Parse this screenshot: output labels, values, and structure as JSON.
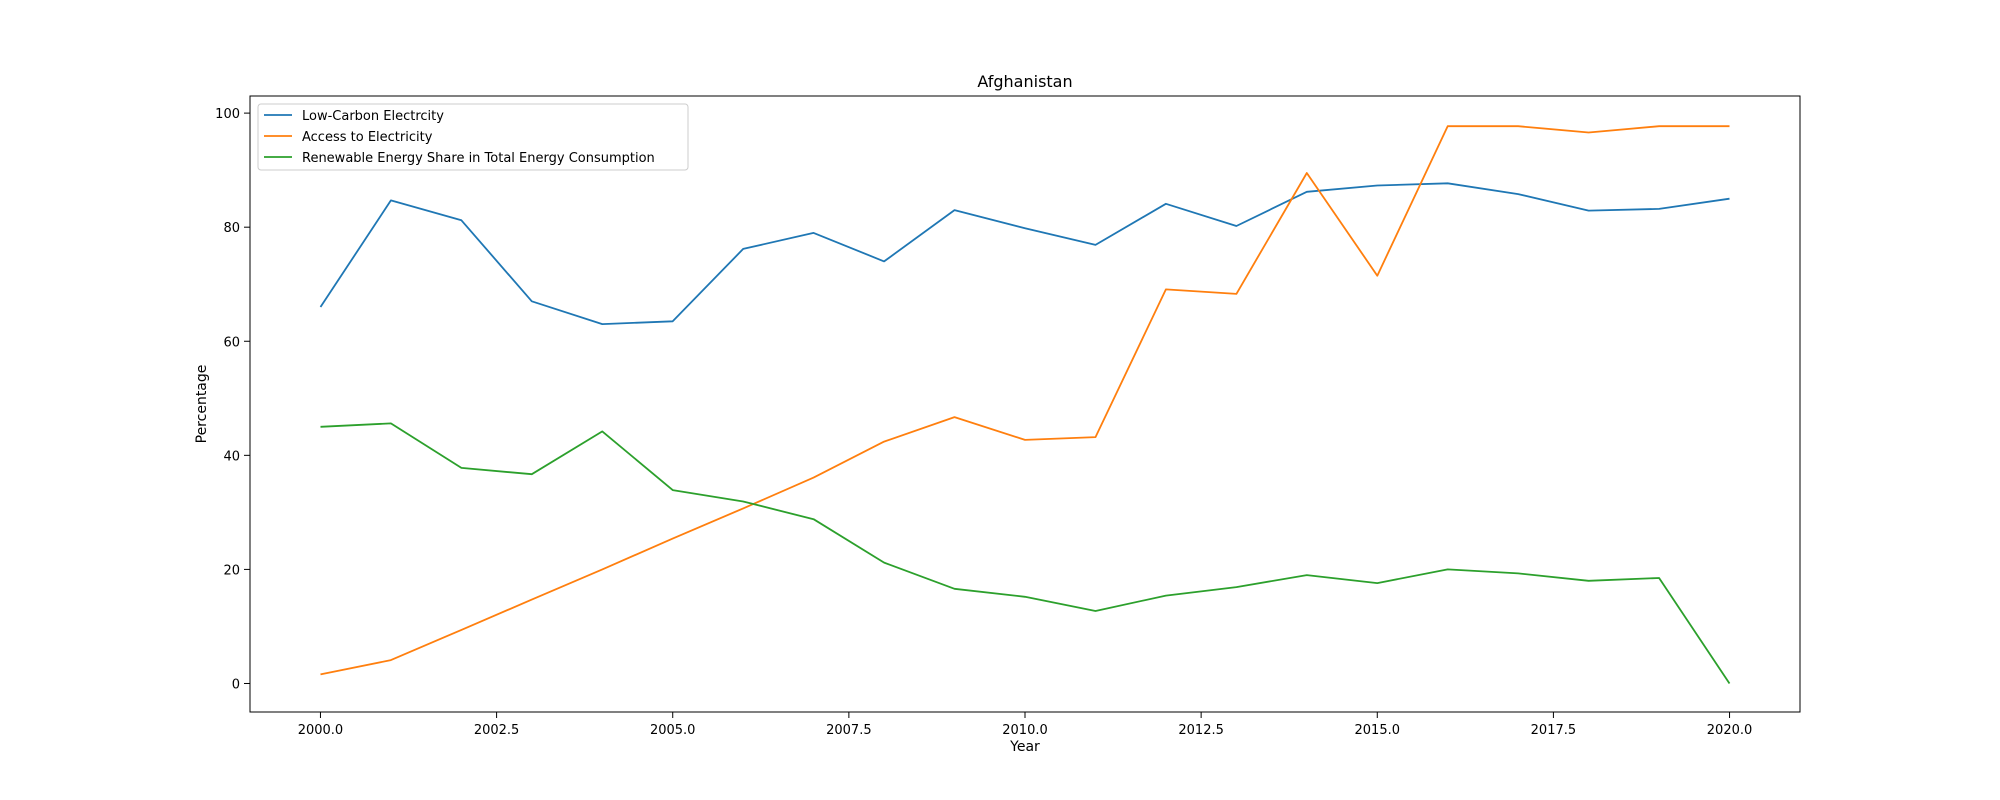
{
  "chart_data": {
    "type": "line",
    "title": "Afghanistan",
    "xlabel": "Year",
    "ylabel": "Percentage",
    "xlim": [
      1999,
      2021
    ],
    "ylim": [
      -5,
      103
    ],
    "xticks": [
      2000.0,
      2002.5,
      2005.0,
      2007.5,
      2010.0,
      2012.5,
      2015.0,
      2017.5,
      2020.0
    ],
    "xtick_labels": [
      "2000.0",
      "2002.5",
      "2005.0",
      "2007.5",
      "2010.0",
      "2012.5",
      "2015.0",
      "2017.5",
      "2020.0"
    ],
    "yticks": [
      0,
      20,
      40,
      60,
      80,
      100
    ],
    "ytick_labels": [
      "0",
      "20",
      "40",
      "60",
      "80",
      "100"
    ],
    "grid": false,
    "legend_position": "top-left",
    "x": [
      2000,
      2001,
      2002,
      2003,
      2004,
      2005,
      2006,
      2007,
      2008,
      2009,
      2010,
      2011,
      2012,
      2013,
      2014,
      2015,
      2016,
      2017,
      2018,
      2019,
      2020
    ],
    "series": [
      {
        "name": "Low-Carbon Electrcity",
        "color": "#1f77b4",
        "values": [
          66.0,
          84.7,
          81.2,
          67.0,
          63.0,
          63.5,
          76.2,
          79.0,
          74.0,
          83.0,
          79.8,
          76.9,
          84.1,
          80.2,
          86.2,
          87.3,
          87.7,
          85.8,
          82.9,
          83.2,
          85.0
        ]
      },
      {
        "name": "Access to Electricity",
        "color": "#ff7f0e",
        "values": [
          1.6,
          4.1,
          9.4,
          14.7,
          20.0,
          25.4,
          30.7,
          36.1,
          42.4,
          46.7,
          42.7,
          43.2,
          69.1,
          68.3,
          89.5,
          71.5,
          97.7,
          97.7,
          96.6,
          97.7,
          97.7
        ]
      },
      {
        "name": "Renewable Energy Share in Total Energy Consumption",
        "color": "#2ca02c",
        "values": [
          45.0,
          45.6,
          37.8,
          36.7,
          44.2,
          33.9,
          31.9,
          28.8,
          21.2,
          16.6,
          15.2,
          12.7,
          15.4,
          16.9,
          19.0,
          17.6,
          20.0,
          19.3,
          18.0,
          18.5,
          0.0
        ]
      }
    ]
  }
}
